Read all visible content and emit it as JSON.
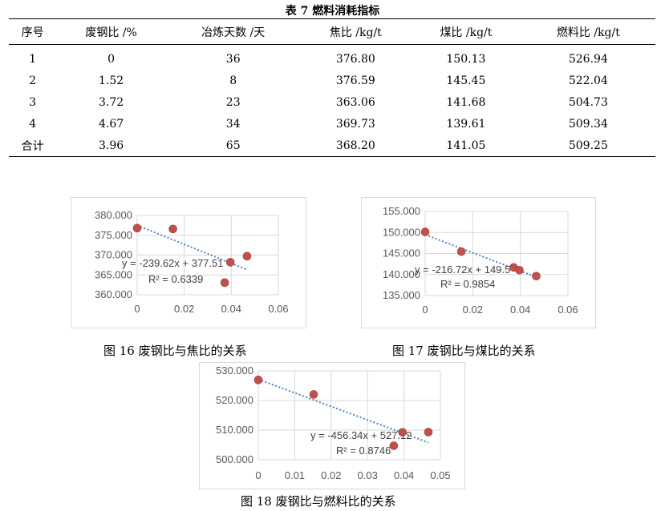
{
  "table": {
    "title": "表 7  燃料消耗指标",
    "headers": [
      "序号",
      "废钢比  /%",
      "冶炼天数  /天",
      "焦比  /kg/t",
      "煤比  /kg/t",
      "燃料比  /kg/t"
    ],
    "rows": [
      [
        "1",
        "0",
        "36",
        "376.80",
        "150.13",
        "526.94"
      ],
      [
        "2",
        "1.52",
        "8",
        "376.59",
        "145.45",
        "522.04"
      ],
      [
        "3",
        "3.72",
        "23",
        "363.06",
        "141.68",
        "504.73"
      ],
      [
        "4",
        "4.67",
        "34",
        "369.73",
        "139.61",
        "509.34"
      ],
      [
        "合计",
        "3.96",
        "65",
        "368.20",
        "141.05",
        "509.25"
      ]
    ]
  },
  "captions": {
    "fig16": "图 16  废钢比与焦比的关系",
    "fig17": "图 17  废钢比与煤比的关系",
    "fig18": "图 18  废钢比与燃料比的关系"
  },
  "chart_data": [
    {
      "type": "scatter",
      "x": [
        0,
        0.0152,
        0.0372,
        0.0396,
        0.0467
      ],
      "y": [
        376.8,
        376.59,
        363.06,
        368.2,
        369.73
      ],
      "xlim": [
        0,
        0.06
      ],
      "ylim": [
        360,
        380
      ],
      "xticks": [
        "0",
        "0.02",
        "0.04",
        "0.06"
      ],
      "yticks": [
        "360.000",
        "365.000",
        "370.000",
        "375.000",
        "380.000"
      ],
      "trendline": {
        "slope": -239.62,
        "intercept": 377.51
      },
      "equation": "y = -239.62x + 377.51",
      "r2": "R² = 0.6339",
      "grid": true,
      "point_color": "#c0504d",
      "trend_color": "#4f81bd"
    },
    {
      "type": "scatter",
      "x": [
        0,
        0.0152,
        0.0372,
        0.0396,
        0.0467
      ],
      "y": [
        150.13,
        145.45,
        141.68,
        141.05,
        139.61
      ],
      "xlim": [
        0,
        0.06
      ],
      "ylim": [
        135,
        155
      ],
      "xticks": [
        "0",
        "0.02",
        "0.04",
        "0.06"
      ],
      "yticks": [
        "135.000",
        "140.000",
        "145.000",
        "150.000",
        "155.000"
      ],
      "trendline": {
        "slope": -216.72,
        "intercept": 149.5
      },
      "equation": "y = -216.72x + 149.5",
      "r2": "R² = 0.9854",
      "grid": true,
      "point_color": "#c0504d",
      "trend_color": "#4f81bd"
    },
    {
      "type": "scatter",
      "x": [
        0,
        0.0152,
        0.0372,
        0.0396,
        0.0467
      ],
      "y": [
        526.94,
        522.04,
        504.73,
        509.25,
        509.34
      ],
      "xlim": [
        0,
        0.05
      ],
      "ylim": [
        500,
        530
      ],
      "xticks": [
        "0",
        "0.01",
        "0.02",
        "0.03",
        "0.04",
        "0.05"
      ],
      "yticks": [
        "500.000",
        "510.000",
        "520.000",
        "530.000"
      ],
      "trendline": {
        "slope": -456.34,
        "intercept": 527.12
      },
      "equation": "y = -456.34x + 527.12",
      "r2": "R² = 0.8746",
      "grid": true,
      "point_color": "#c0504d",
      "trend_color": "#4f81bd"
    }
  ]
}
